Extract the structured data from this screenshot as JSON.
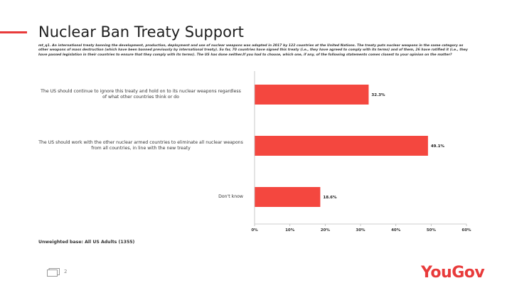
{
  "title": "Nuclear Ban Treaty Support",
  "question": "mt_q1. An international treaty banning the development, production, deployment and use of nuclear weapons was adopted in 2017 by 122 countries at the United Nations. The treaty puts nuclear weapons in the same category as other weapons of mass destruction (which have been banned previously by international treaty). So far, 70 countries have signed this treaty (i.e., they have agreed to comply with its terms) and of them, 26 have ratified it (i.e., they have passed legislation in their countries to ensure that they comply with its terms). The US has done neither.If you had to choose, which one, if any, of the following statements comes closest to your opinion on the matter?",
  "base_note": "Unweighted base: All US Adults (1355)",
  "page_number": "2",
  "logo": {
    "you": "You",
    "gov": "Gov"
  },
  "colors": {
    "accent": "#e83a3a",
    "bar": "#f4473f"
  },
  "chart_data": {
    "type": "bar",
    "orientation": "horizontal",
    "categories": [
      "The US should continue to ignore this treaty and hold on to its nuclear weapons regardless of what other countries think or do",
      "The US should work with the other nuclear armed countries to eliminate all nuclear weapons from all countries, in line with the new treaty",
      "Don't know"
    ],
    "values": [
      32.3,
      49.1,
      18.6
    ],
    "value_labels": [
      "32.3%",
      "49.1%",
      "18.6%"
    ],
    "xlim": [
      0,
      60
    ],
    "xticks": [
      0,
      10,
      20,
      30,
      40,
      50,
      60
    ],
    "xtick_labels": [
      "0%",
      "10%",
      "20%",
      "30%",
      "40%",
      "50%",
      "60%"
    ],
    "grid": false,
    "legend": "none"
  }
}
